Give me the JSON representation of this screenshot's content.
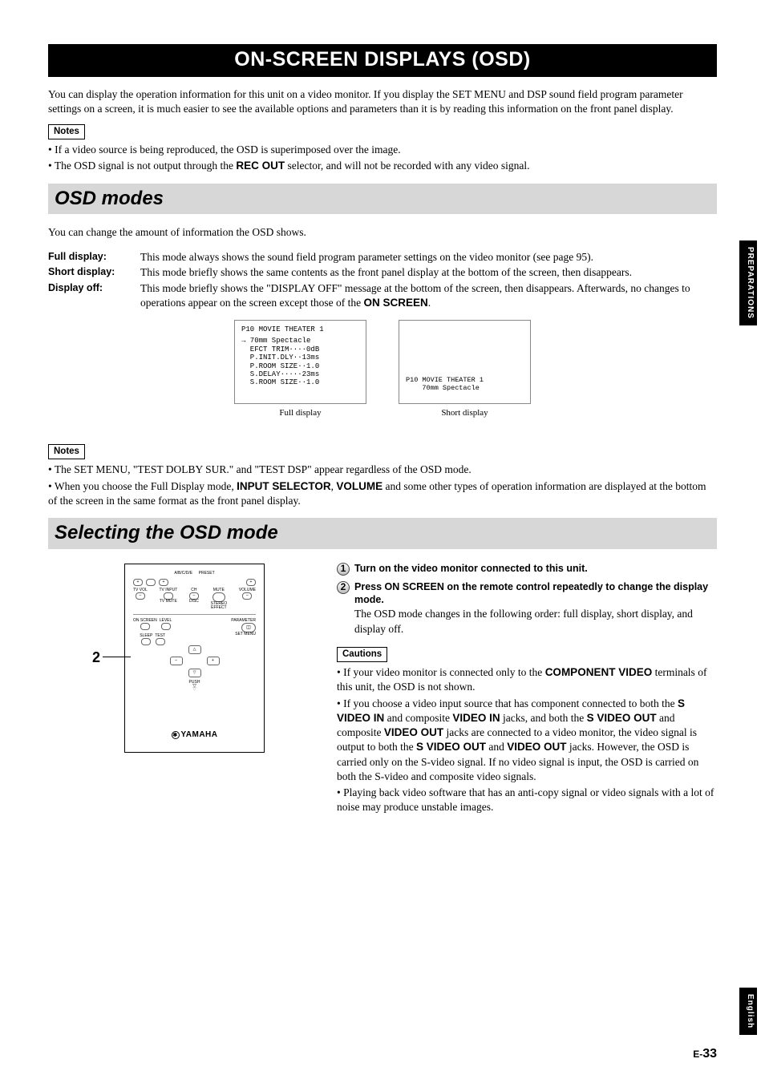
{
  "title": "ON-SCREEN DISPLAYS (OSD)",
  "intro": "You can display the operation information for this unit on a video monitor. If you display the SET MENU and DSP sound field program parameter settings on a screen, it is much easier to see the available options and parameters than it is by reading this information on the front panel display.",
  "notes1_label": "Notes",
  "notes1": [
    "If a video source is being reproduced, the OSD is superimposed over the image.",
    "The OSD signal is not output through the <b>REC OUT</b> selector, and will not be recorded with any video signal."
  ],
  "section_modes": "OSD modes",
  "modes_intro": "You can change the amount of information the OSD shows.",
  "modes": [
    {
      "label": "Full display:",
      "desc": "This mode always shows the sound field program parameter settings on the video monitor (see page 95)."
    },
    {
      "label": "Short display:",
      "desc": "This mode briefly shows the same contents as the front panel display at the bottom of the screen, then disappears."
    },
    {
      "label": "Display off:",
      "desc": "This mode briefly shows the \"DISPLAY OFF\" message at the bottom of the screen, then disappears. Afterwards, no changes to operations appear on the screen except those of the <b>ON SCREEN</b>."
    }
  ],
  "osd_full": {
    "title": "P10 MOVIE THEATER 1",
    "lines": [
      "→ 70mm Spectacle",
      "  EFCT TRIM····0dB",
      "  P.INIT.DLY··13ms",
      "  P.ROOM SIZE··1.0",
      "  S.DELAY·····23ms",
      "  S.ROOM SIZE··1.0"
    ],
    "caption": "Full display"
  },
  "osd_short": {
    "line1": "P10 MOVIE THEATER 1",
    "line2": "    70mm Spectacle",
    "caption": "Short display"
  },
  "notes2_label": "Notes",
  "notes2": [
    "The SET MENU, \"TEST DOLBY SUR.\" and \"TEST DSP\" appear regardless of the OSD mode.",
    "When you choose the Full Display mode, <b>INPUT SELECTOR</b>, <b>VOLUME</b> and some other types of operation information are displayed at the bottom of the screen in the same format as the front panel display."
  ],
  "section_select": "Selecting the OSD mode",
  "callout": "2",
  "steps": [
    {
      "num": "1",
      "title": "Turn on the video monitor connected to this unit.",
      "body": ""
    },
    {
      "num": "2",
      "title": "Press ON SCREEN on the remote control repeatedly to change the display mode.",
      "body": "The OSD mode changes in the following order: full display, short display, and display off."
    }
  ],
  "cautions_label": "Cautions",
  "cautions": [
    "If your video monitor is connected only to the <b>COMPONENT VIDEO</b> terminals of this unit, the OSD is not shown.",
    "If you choose a video input source that has component connected to both the <b>S VIDEO IN</b> and composite <b>VIDEO IN</b> jacks, and both the <b>S VIDEO OUT</b> and composite <b>VIDEO OUT</b> jacks are connected to a video monitor, the video signal is output to both the <b>S VIDEO OUT</b> and <b>VIDEO OUT</b> jacks. However, the OSD is carried only on the S-video signal. If no video signal is input, the OSD is carried on both the S-video and composite video signals.",
    "Playing back video software that has an anti-copy signal or video signals with a lot of noise may produce unstable images."
  ],
  "remote": {
    "top_labels": {
      "abcde": "A/B/C/D/E",
      "preset": "PRESET",
      "tvvol": "TV VOL",
      "tvinput": "TV INPUT",
      "ch": "CH",
      "mute": "MUTE",
      "volume": "VOLUME",
      "tvmute": "TV MUTE",
      "stereo": "STEREO",
      "disc": "DISC",
      "effect": "EFFECT"
    },
    "mid_labels": {
      "onscreen": "ON SCREEN",
      "level": "LEVEL",
      "parameter": "PARAMETER",
      "setmenu": "SET MENU",
      "sleep": "SLEEP",
      "test": "TEST"
    },
    "push": "PUSH",
    "brand": "YAMAHA"
  },
  "side": {
    "prep": "PREPARATIONS",
    "eng": "English"
  },
  "pagenum_prefix": "E-",
  "pagenum": "33"
}
